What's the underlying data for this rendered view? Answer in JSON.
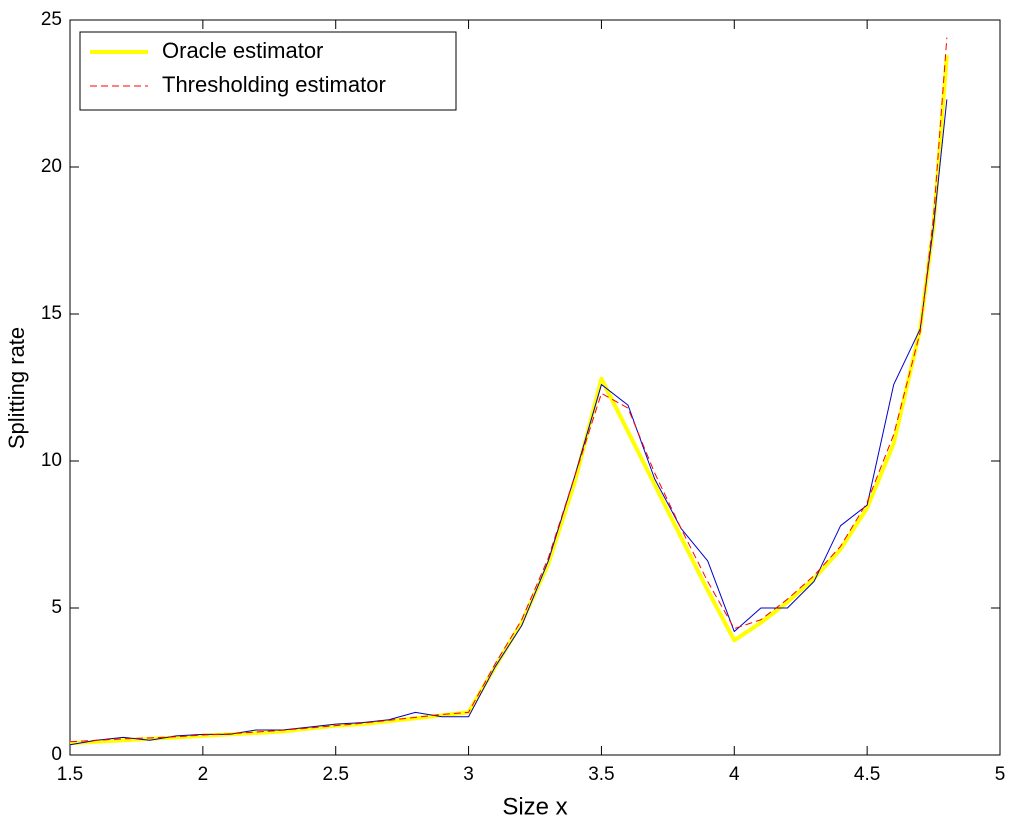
{
  "chart_data": {
    "type": "line",
    "xlabel": "Size x",
    "ylabel": "Splitting rate",
    "x": [
      1.5,
      1.6,
      1.7,
      1.8,
      1.9,
      2.0,
      2.1,
      2.2,
      2.3,
      2.4,
      2.5,
      2.6,
      2.7,
      2.8,
      2.9,
      3.0,
      3.1,
      3.2,
      3.3,
      3.4,
      3.5,
      3.6,
      3.7,
      3.8,
      3.9,
      4.0,
      4.1,
      4.2,
      4.3,
      4.4,
      4.5,
      4.6,
      4.7,
      4.75,
      4.8
    ],
    "series": [
      {
        "name": "Oracle estimator",
        "color": "#ffff00",
        "width": 4,
        "dash": false,
        "values": [
          0.4,
          0.45,
          0.5,
          0.55,
          0.6,
          0.65,
          0.7,
          0.75,
          0.8,
          0.9,
          1.0,
          1.05,
          1.15,
          1.25,
          1.35,
          1.45,
          3.0,
          4.5,
          6.5,
          9.3,
          12.8,
          11.0,
          9.2,
          7.4,
          5.6,
          3.9,
          4.5,
          5.2,
          6.0,
          7.0,
          8.4,
          10.6,
          14.5,
          18.0,
          23.8
        ]
      },
      {
        "name": "Thresholding estimator",
        "color": "#ff0000",
        "width": 1,
        "dash": true,
        "values": [
          0.45,
          0.5,
          0.55,
          0.58,
          0.62,
          0.68,
          0.72,
          0.78,
          0.84,
          0.92,
          1.0,
          1.08,
          1.18,
          1.28,
          1.38,
          1.45,
          3.1,
          4.6,
          6.7,
          9.5,
          12.3,
          11.8,
          9.6,
          7.7,
          5.9,
          4.3,
          4.6,
          5.3,
          6.1,
          7.1,
          8.6,
          10.9,
          14.4,
          18.3,
          24.4
        ]
      },
      {
        "color": "#0000cc",
        "width": 1,
        "dash": false,
        "values": [
          0.35,
          0.5,
          0.6,
          0.5,
          0.65,
          0.7,
          0.7,
          0.85,
          0.85,
          0.95,
          1.05,
          1.1,
          1.2,
          1.45,
          1.3,
          1.3,
          3.0,
          4.4,
          6.6,
          9.5,
          12.6,
          11.9,
          9.4,
          7.7,
          6.6,
          4.2,
          5.0,
          5.0,
          5.9,
          7.8,
          8.5,
          12.6,
          14.5,
          18.0,
          22.3
        ]
      }
    ],
    "xlim": [
      1.5,
      5
    ],
    "xticks": [
      1.5,
      2,
      2.5,
      3,
      3.5,
      4,
      4.5,
      5
    ],
    "ylim": [
      0,
      25
    ],
    "yticks": [
      0,
      5,
      10,
      15,
      20,
      25
    ],
    "legend": "upper-left"
  }
}
